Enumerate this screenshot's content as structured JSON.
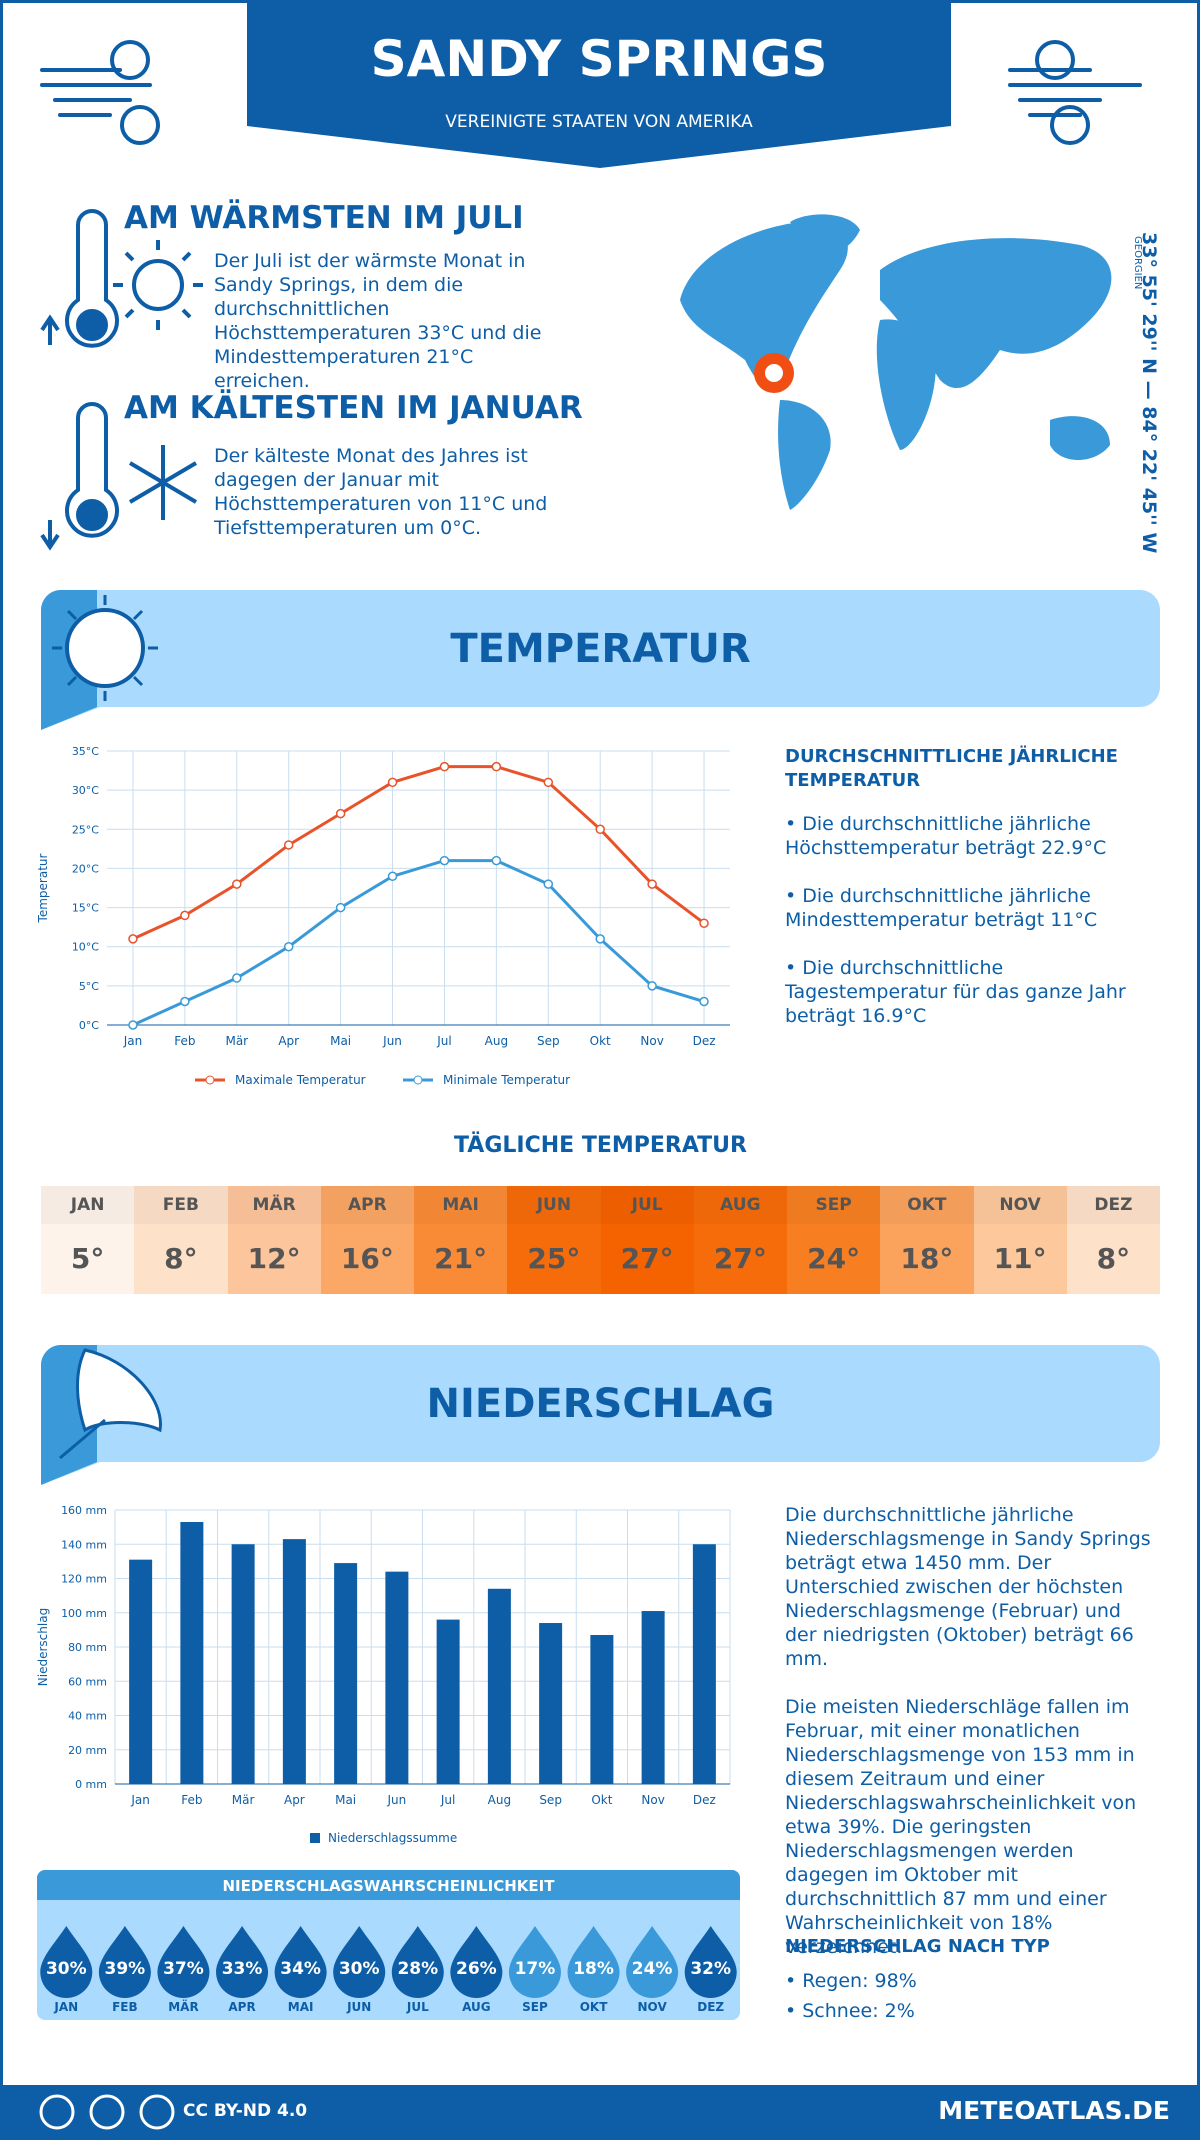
{
  "header": {
    "title": "SANDY SPRINGS",
    "subtitle": "VEREINIGTE STAATEN VON AMERIKA"
  },
  "warmest": {
    "title": "AM WÄRMSTEN IM JULI",
    "text": "Der Juli ist der wärmste Monat in Sandy Springs, in dem die durchschnittlichen Höchsttemperaturen 33°C und die Mindesttemperaturen 21°C erreichen."
  },
  "coldest": {
    "title": "AM KÄLTESTEN IM JANUAR",
    "text": "Der kälteste Monat des Jahres ist dagegen der Januar mit Höchsttemperaturen von 11°C und Tiefsttemperaturen um 0°C."
  },
  "location": {
    "coordinates": "33° 55' 29'' N — 84° 22' 45'' W",
    "region": "GEORGIEN"
  },
  "temperature_section": {
    "title": "TEMPERATUR",
    "summary_title": "DURCHSCHNITTLICHE JÄHRLICHE TEMPERATUR",
    "items": [
      "• Die durchschnittliche jährliche Höchsttemperatur beträgt 22.9°C",
      "• Die durchschnittliche jährliche Mindesttemperatur beträgt 11°C",
      "• Die durchschnittliche Tagestemperatur für das ganze Jahr beträgt 16.9°C"
    ]
  },
  "daily_temperature": {
    "title": "TÄGLICHE TEMPERATUR",
    "months": [
      "JAN",
      "FEB",
      "MÄR",
      "APR",
      "MAI",
      "JUN",
      "JUL",
      "AUG",
      "SEP",
      "OKT",
      "NOV",
      "DEZ"
    ],
    "cells": [
      "5°",
      "8°",
      "12°",
      "16°",
      "21°",
      "25°",
      "27°",
      "27°",
      "24°",
      "18°",
      "11°",
      "8°"
    ],
    "colors": [
      "#fdf3ea",
      "#fde1c9",
      "#fdc59b",
      "#fba765",
      "#f98b37",
      "#f66c0a",
      "#f56200",
      "#f66c0a",
      "#f77f22",
      "#fba35d",
      "#fdc99c",
      "#fde1c9"
    ]
  },
  "precipitation_section": {
    "title": "NIEDERSCHLAG",
    "paragraphs": [
      "Die durchschnittliche jährliche Niederschlagsmenge in Sandy Springs beträgt etwa 1450 mm. Der Unterschied zwischen der höchsten Niederschlagsmenge (Februar) und der niedrigsten (Oktober) beträgt 66 mm.",
      "Die meisten Niederschläge fallen im Februar, mit einer monatlichen Niederschlagsmenge von 153 mm in diesem Zeitraum und einer Niederschlagswahrscheinlichkeit von etwa 39%. Die geringsten Niederschlagsmengen werden dagegen im Oktober mit durchschnittlich 87 mm und einer Wahrscheinlichkeit von 18% verzeichnet."
    ],
    "type_title": "NIEDERSCHLAG NACH TYP",
    "types": [
      "• Regen: 98%",
      "• Schnee: 2%"
    ]
  },
  "probability": {
    "title": "NIEDERSCHLAGSWAHRSCHEINLICHKEIT",
    "months": [
      "JAN",
      "FEB",
      "MÄR",
      "APR",
      "MAI",
      "JUN",
      "JUL",
      "AUG",
      "SEP",
      "OKT",
      "NOV",
      "DEZ"
    ],
    "labels": [
      "30%",
      "39%",
      "37%",
      "33%",
      "34%",
      "30%",
      "28%",
      "26%",
      "17%",
      "18%",
      "24%",
      "32%"
    ],
    "colors": [
      "#0d5ea6",
      "#0d5ea6",
      "#0d5ea6",
      "#0d5ea6",
      "#0d5ea6",
      "#0d5ea6",
      "#0d5ea6",
      "#0d5ea6",
      "#3a9ad9",
      "#3a9ad9",
      "#3a9ad9",
      "#0d5ea6"
    ]
  },
  "footer": {
    "license": "CC BY-ND 4.0",
    "site": "METEOATLAS.DE"
  },
  "chart_data": [
    {
      "type": "line",
      "y_label": "Temperatur",
      "categories": [
        "Jan",
        "Feb",
        "Mär",
        "Apr",
        "Mai",
        "Jun",
        "Jul",
        "Aug",
        "Sep",
        "Okt",
        "Nov",
        "Dez"
      ],
      "series": [
        {
          "name": "Maximale Temperatur",
          "color": "#e8532a",
          "values": [
            11,
            14,
            18,
            23,
            27,
            31,
            33,
            33,
            31,
            25,
            18,
            13
          ]
        },
        {
          "name": "Minimale Temperatur",
          "color": "#3a9ad9",
          "values": [
            0,
            3,
            6,
            10,
            15,
            19,
            21,
            21,
            18,
            11,
            5,
            3
          ]
        }
      ],
      "ylim": [
        0,
        35
      ],
      "yticks": [
        {
          "value": 0,
          "label": "0°C"
        },
        {
          "value": 5,
          "label": "5°C"
        },
        {
          "value": 10,
          "label": "10°C"
        },
        {
          "value": 15,
          "label": "15°C"
        },
        {
          "value": 20,
          "label": "20°C"
        },
        {
          "value": 25,
          "label": "25°C"
        },
        {
          "value": 30,
          "label": "30°C"
        },
        {
          "value": 35,
          "label": "35°C"
        }
      ],
      "grid": true
    },
    {
      "type": "bar",
      "y_label": "Niederschlag",
      "categories": [
        "Jan",
        "Feb",
        "Mär",
        "Apr",
        "Mai",
        "Jun",
        "Jul",
        "Aug",
        "Sep",
        "Okt",
        "Nov",
        "Dez"
      ],
      "series": [
        {
          "name": "Niederschlagssumme",
          "color": "#0d5ea6",
          "values": [
            131,
            153,
            140,
            143,
            129,
            124,
            96,
            114,
            94,
            87,
            101,
            140
          ]
        }
      ],
      "ylim": [
        0,
        160
      ],
      "yticks": [
        {
          "value": 0,
          "label": "0 mm"
        },
        {
          "value": 20,
          "label": "20 mm"
        },
        {
          "value": 40,
          "label": "40 mm"
        },
        {
          "value": 60,
          "label": "60 mm"
        },
        {
          "value": 80,
          "label": "80 mm"
        },
        {
          "value": 100,
          "label": "100 mm"
        },
        {
          "value": 120,
          "label": "120 mm"
        },
        {
          "value": 140,
          "label": "140 mm"
        },
        {
          "value": 160,
          "label": "160 mm"
        }
      ],
      "grid": true
    }
  ]
}
